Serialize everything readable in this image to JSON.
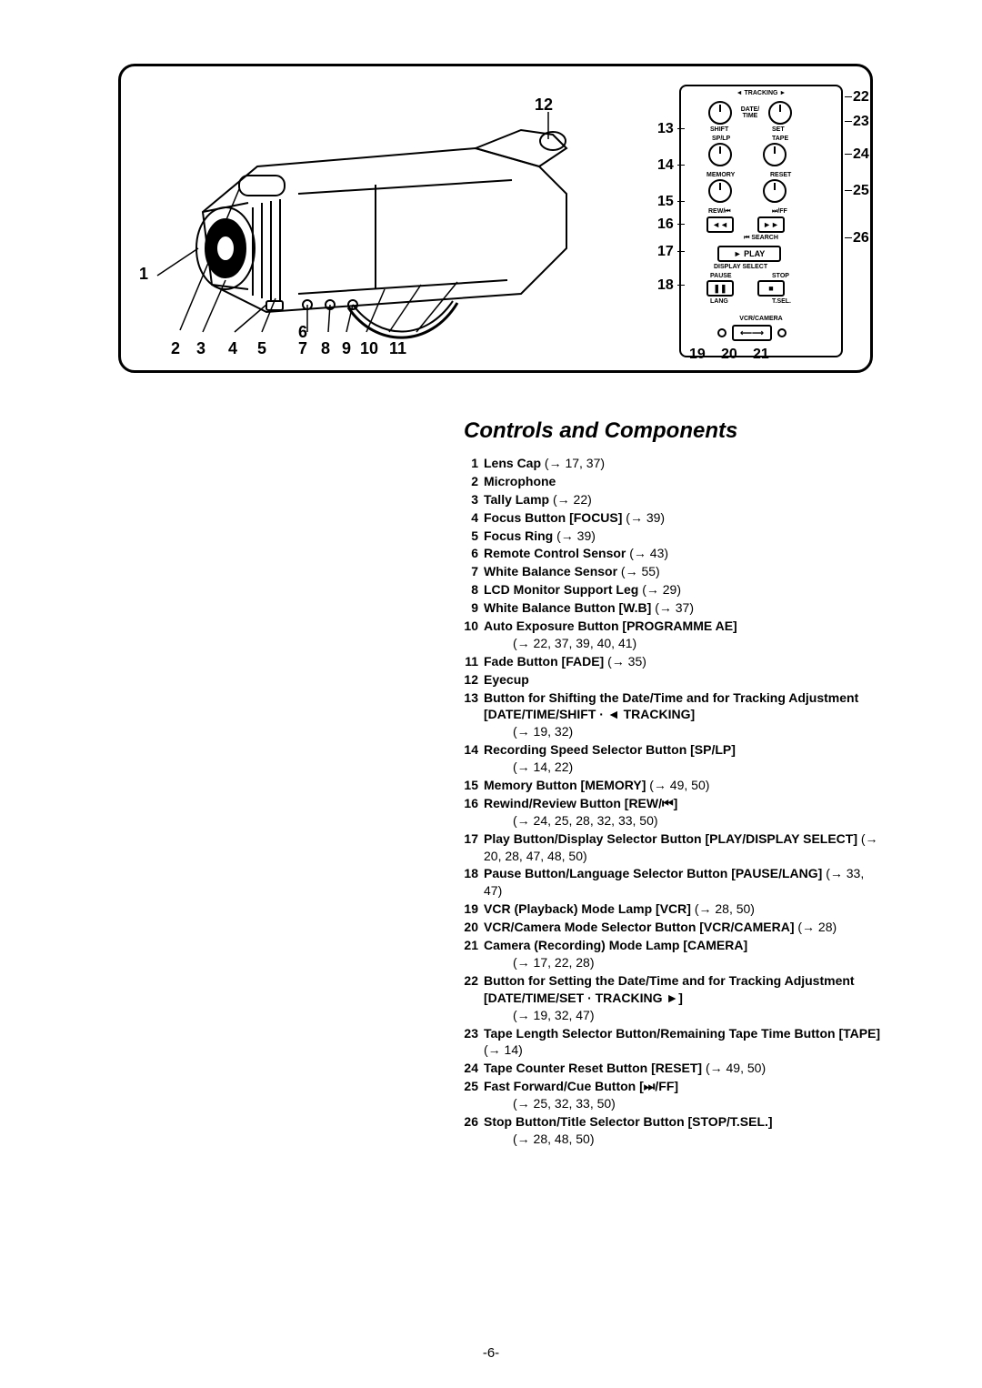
{
  "heading": "Controls and Components",
  "page_number": "-6-",
  "diagram_numbers": {
    "left": [
      "1",
      "2",
      "3",
      "4",
      "5",
      "6",
      "7",
      "8",
      "9",
      "10",
      "11",
      "12"
    ],
    "right_outside": [
      "13",
      "14",
      "15",
      "16",
      "17",
      "18",
      "19",
      "20",
      "21",
      "22",
      "23",
      "24",
      "25",
      "26"
    ]
  },
  "panel_labels": {
    "tracking": "◄ TRACKING ►",
    "date_time": "DATE/\nTIME",
    "shift": "SHIFT",
    "set": "SET",
    "splp": "SP/LP",
    "tape": "TAPE",
    "memory": "MEMORY",
    "reset": "RESET",
    "rew": "REW/⏮",
    "ff": "⏭/FF",
    "search": "⏮ SEARCH",
    "play": "► PLAY",
    "display_select": "DISPLAY SELECT",
    "pause": "PAUSE",
    "stop": "STOP",
    "lang": "LANG",
    "tsel": "T.SEL.",
    "vcr_camera": "VCR/CAMERA"
  },
  "components": [
    {
      "n": "1",
      "t": "<b>Lens Cap</b> (→ 17, 37)"
    },
    {
      "n": "2",
      "t": "<b>Microphone</b>"
    },
    {
      "n": "3",
      "t": "<b>Tally Lamp</b> (→ 22)"
    },
    {
      "n": "4",
      "t": "<b>Focus Button [FOCUS]</b> (→ 39)"
    },
    {
      "n": "5",
      "t": "<b>Focus Ring</b> (→ 39)"
    },
    {
      "n": "6",
      "t": "<b>Remote Control Sensor</b> (→ 43)"
    },
    {
      "n": "7",
      "t": "<b>White Balance Sensor</b> (→ 55)"
    },
    {
      "n": "8",
      "t": "<b>LCD Monitor Support Leg</b> (→ 29)"
    },
    {
      "n": "9",
      "t": "<b>White Balance Button [W.B]</b> (→ 37)"
    },
    {
      "n": "10",
      "t": "<b>Auto Exposure Button [PROGRAMME AE]</b><br><span class='sub'>(→ 22, 37, 39, 40, 41)</span>"
    },
    {
      "n": "11",
      "t": "<b>Fade Button [FADE]</b> (→ 35)"
    },
    {
      "n": "12",
      "t": "<b>Eyecup</b>"
    },
    {
      "n": "13",
      "t": "<b>Button for Shifting the Date/Time and for Tracking Adjustment [DATE/TIME/SHIFT · ◄ TRACKING]</b><br><span class='sub'>(→ 19, 32)</span>"
    },
    {
      "n": "14",
      "t": "<b>Recording Speed Selector Button [SP/LP]</b><br><span class='sub'>(→ 14, 22)</span>"
    },
    {
      "n": "15",
      "t": "<b>Memory Button [MEMORY]</b> (→ 49, 50)"
    },
    {
      "n": "16",
      "t": "<b>Rewind/Review Button [REW/⏮]</b><br><span class='sub'>(→ 24, 25, 28, 32, 33, 50)</span>"
    },
    {
      "n": "17",
      "t": "<b>Play Button/Display Selector Button [PLAY/DISPLAY SELECT]</b> (→ 20, 28, 47, 48, 50)"
    },
    {
      "n": "18",
      "t": "<b>Pause Button/Language Selector Button [PAUSE/LANG]</b> (→ 33, 47)"
    },
    {
      "n": "19",
      "t": "<b>VCR (Playback) Mode Lamp [VCR]</b> (→ 28, 50)"
    },
    {
      "n": "20",
      "t": "<b>VCR/Camera Mode Selector Button [VCR/CAMERA]</b> (→ 28)"
    },
    {
      "n": "21",
      "t": "<b>Camera (Recording) Mode Lamp [CAMERA]</b><br><span class='sub'>(→ 17, 22, 28)</span>"
    },
    {
      "n": "22",
      "t": "<b>Button for Setting the Date/Time and for Tracking Adjustment [DATE/TIME/SET · TRACKING ►]</b><br><span class='sub'>(→ 19, 32, 47)</span>"
    },
    {
      "n": "23",
      "t": "<b>Tape Length Selector Button/Remaining Tape Time Button [TAPE]</b> (→ 14)"
    },
    {
      "n": "24",
      "t": "<b>Tape Counter Reset Button [RESET]</b> (→ 49, 50)"
    },
    {
      "n": "25",
      "t": "<b>Fast Forward/Cue Button [⏭/FF]</b><br><span class='sub'>(→ 25, 32, 33, 50)</span>"
    },
    {
      "n": "26",
      "t": "<b>Stop Button/Title Selector Button [STOP/T.SEL.]</b><br><span class='sub'>(→ 28, 48, 50)</span>"
    }
  ]
}
